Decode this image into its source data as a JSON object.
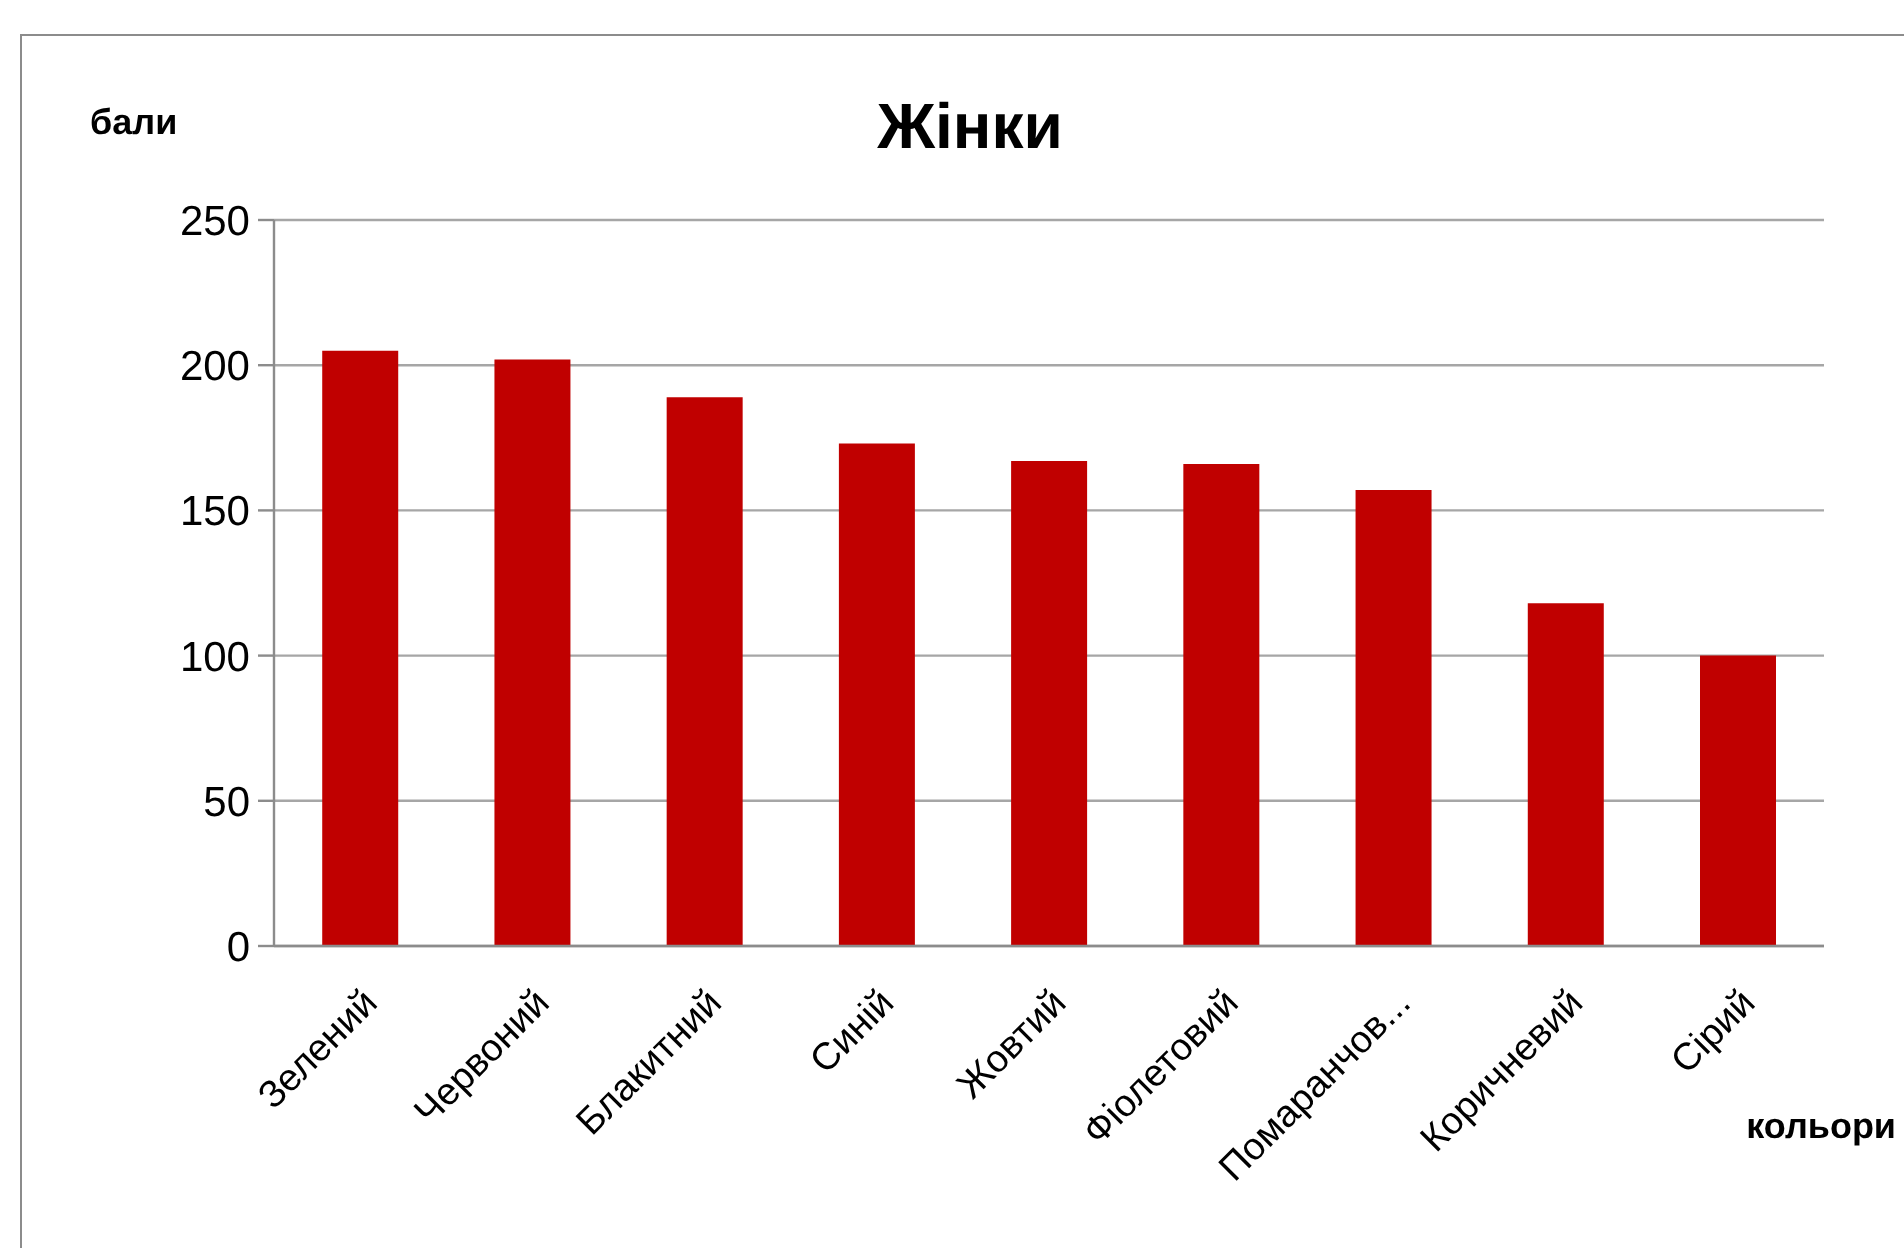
{
  "chart_data": {
    "type": "bar",
    "title": "Жінки",
    "xlabel": "кольори",
    "ylabel": "бали",
    "categories": [
      "Зелений",
      "Червоний",
      "Блакитний",
      "Синій",
      "Жовтий",
      "Фіолетовий",
      "Помаранчов...",
      "Коричневий",
      "Сірий"
    ],
    "values": [
      205,
      202,
      189,
      173,
      167,
      166,
      157,
      118,
      100
    ],
    "color": "#c00000",
    "ylim": [
      0,
      250
    ],
    "yticks": [
      0,
      50,
      100,
      150,
      200,
      250
    ],
    "grid": "y"
  }
}
